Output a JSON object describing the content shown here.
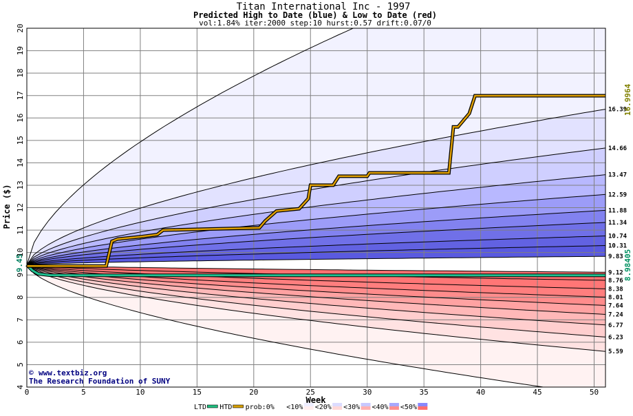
{
  "header": {
    "title": "Titan International Inc - 1997",
    "subtitle": "Predicted High to Date (blue) &  Low to Date (red)",
    "params": "vol:1.84% iter:2000 step:10 hurst:0.57 drift:0.07/0"
  },
  "credit": {
    "site": "www.textbiz.org",
    "org": "The Research Foundation of SUNY"
  },
  "chart_data": {
    "type": "area",
    "xlabel": "Week",
    "ylabel": "Price ($)",
    "xlim": [
      0,
      51
    ],
    "ylim": [
      4,
      20
    ],
    "x_ticks": [
      0,
      5,
      10,
      15,
      20,
      25,
      30,
      35,
      40,
      45,
      50
    ],
    "y_ticks": [
      4,
      5,
      6,
      7,
      8,
      9,
      10,
      11,
      12,
      13,
      14,
      15,
      16,
      17,
      18,
      19,
      20
    ],
    "grid": true,
    "start_price": 9.45,
    "start_label": "9.45",
    "high_to_date_final": 16.9964,
    "high_to_date_label": "16.9964",
    "low_to_date_final": 8.98405,
    "low_to_date_label": "8.98405",
    "high_quantiles_end": [
      9.83,
      10.31,
      10.74,
      11.34,
      11.88,
      12.59,
      13.47,
      14.66,
      16.39
    ],
    "high_quantile_labels": [
      "9.83",
      "10.31",
      "10.74",
      "11.34",
      "11.88",
      "12.59",
      "13.47",
      "14.66",
      "16.39"
    ],
    "low_quantiles_end": [
      9.12,
      8.76,
      8.38,
      8.01,
      7.64,
      7.24,
      6.77,
      6.23,
      5.59
    ],
    "low_quantile_labels": [
      "9.12",
      "8.76",
      "8.38",
      "8.01",
      "7.64",
      "7.24",
      "6.77",
      "6.23",
      "5.59"
    ],
    "outer_high_end": 24.5,
    "outer_low_end": 3.6,
    "high_to_date_path": {
      "weeks": [
        0,
        7,
        7.5,
        8,
        10,
        11.5,
        12,
        20.5,
        21,
        22,
        24,
        24.8,
        25,
        27,
        27.5,
        30,
        30.2,
        37.2,
        37.6,
        38,
        39,
        39.5,
        51
      ],
      "prices": [
        9.4,
        9.4,
        10.5,
        10.6,
        10.7,
        10.8,
        11.0,
        11.1,
        11.4,
        11.85,
        11.95,
        12.4,
        13.0,
        13.0,
        13.4,
        13.4,
        13.55,
        13.55,
        15.6,
        15.6,
        16.2,
        16.99,
        16.99
      ]
    },
    "low_to_date_path": {
      "weeks": [
        0,
        0.5,
        1,
        2,
        4,
        8,
        15,
        25,
        35,
        45,
        51
      ],
      "prices": [
        9.45,
        9.2,
        9.05,
        8.99,
        8.98,
        8.98,
        8.98,
        8.98,
        8.98,
        8.98,
        8.98
      ]
    },
    "legend": {
      "items": [
        "LTD",
        "HTD",
        "prob:0%",
        "<10%",
        "<20%",
        "<30%",
        "<40%",
        "<50%"
      ],
      "swatches": [
        "#20c080",
        "#d8a000",
        "#ffffff",
        "#ffeeee",
        "#ffd8d8",
        "#ffb0b0",
        "#ff9090",
        "#ff7070"
      ],
      "blue_swatches": [
        "#ffffff",
        "#eeeeff",
        "#dcdcff",
        "#c8c8ff",
        "#a8a8ff",
        "#8888ff"
      ],
      "placement": "bottom-center"
    },
    "colors": {
      "blue_bands": [
        "#f2f2ff",
        "#e2e2ff",
        "#cfcfff",
        "#b8b8ff",
        "#9c9cf8",
        "#8282f0",
        "#7070e8",
        "#6262e2",
        "#5a5ae0"
      ],
      "red_bands": [
        "#fff2f2",
        "#ffe2e2",
        "#ffcece",
        "#ffb8b8",
        "#ffa2a2",
        "#ff8c8c",
        "#ff7e7e",
        "#ff7676",
        "#ff7272"
      ],
      "htd_line": "#e0a000",
      "ltd_line": "#20c090",
      "annot_htd": "#808000",
      "annot_ltd": "#009060"
    }
  }
}
